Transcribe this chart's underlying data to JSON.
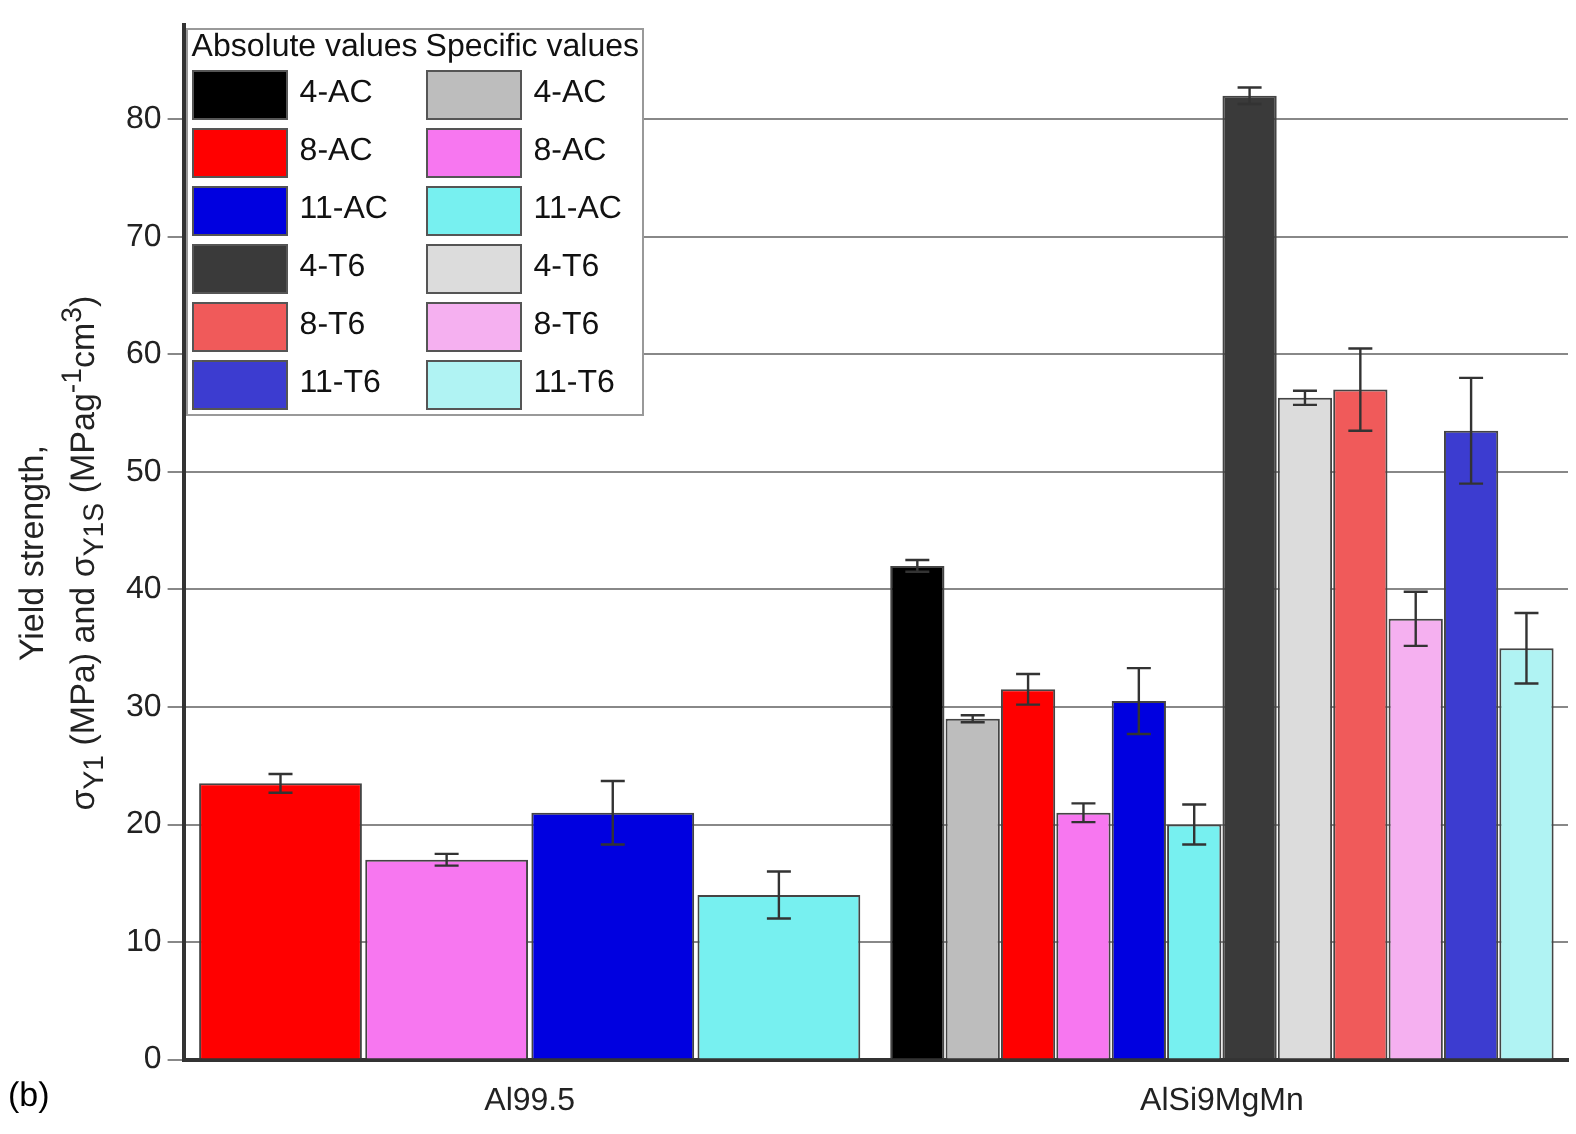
{
  "chart_data": {
    "type": "bar",
    "ylabel": "Yield strength,\nσ$_{Y1}$ (MPa) and σ$_{Y1S}$ (MPag$^{-1}$cm$^{3}$)",
    "categories": [
      "Al99.5",
      "AlSi9MgMn"
    ],
    "series": [
      {
        "name": "4-AC",
        "color": "#000000",
        "values": [
          null,
          42
        ],
        "errors": [
          null,
          0.5
        ]
      },
      {
        "name": "4-AC",
        "color": "#bdbdbd",
        "values": [
          null,
          29
        ],
        "errors": [
          null,
          0.3
        ]
      },
      {
        "name": "8-AC",
        "color": "#ff0000",
        "values": [
          23.5,
          31.5
        ],
        "errors": [
          0.8,
          1.3
        ]
      },
      {
        "name": "8-AC",
        "color": "#f777f0",
        "values": [
          17,
          21
        ],
        "errors": [
          0.5,
          0.8
        ]
      },
      {
        "name": "11-AC",
        "color": "#0000e0",
        "values": [
          21,
          30.5
        ],
        "errors": [
          2.7,
          2.8
        ]
      },
      {
        "name": "11-AC",
        "color": "#77f0f0",
        "values": [
          14,
          20
        ],
        "errors": [
          2,
          1.7
        ]
      },
      {
        "name": "4-T6",
        "color": "#3a3a3a",
        "values": [
          null,
          82
        ],
        "errors": [
          null,
          0.7
        ]
      },
      {
        "name": "4-T6",
        "color": "#dcdcdc",
        "values": [
          null,
          56.3
        ],
        "errors": [
          null,
          0.6
        ]
      },
      {
        "name": "8-T6",
        "color": "#f05a5a",
        "values": [
          null,
          57
        ],
        "errors": [
          null,
          3.5
        ]
      },
      {
        "name": "8-T6",
        "color": "#f5b0f0",
        "values": [
          null,
          37.5
        ],
        "errors": [
          null,
          2.3
        ]
      },
      {
        "name": "11-T6",
        "color": "#3c3cd0",
        "values": [
          null,
          53.5
        ],
        "errors": [
          null,
          4.5
        ]
      },
      {
        "name": "11-T6",
        "color": "#b0f3f3",
        "values": [
          null,
          35
        ],
        "errors": [
          null,
          3
        ]
      }
    ],
    "ylim": [
      0,
      88
    ],
    "yticks": [
      0,
      10,
      20,
      30,
      40,
      50,
      60,
      70,
      80
    ],
    "grid": "y",
    "legend": "top left",
    "annotations": [
      "Absolute values",
      "Specific values",
      "(b)"
    ]
  }
}
